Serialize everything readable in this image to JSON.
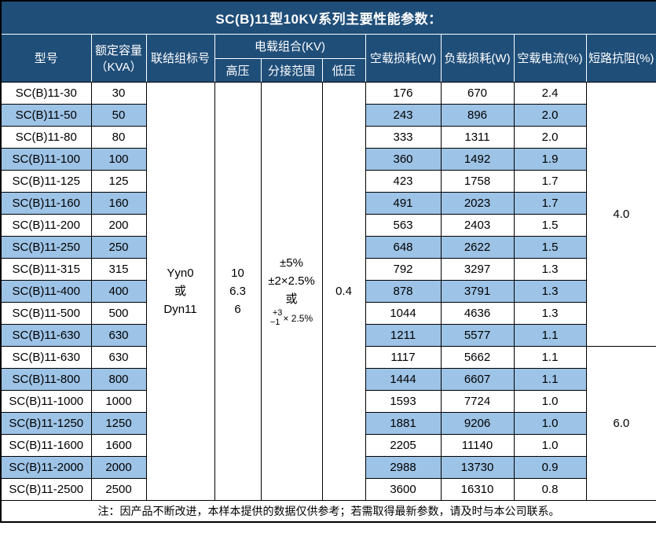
{
  "title": "SC(B)11型10KV系列主要性能参数：",
  "header": {
    "model": "型号",
    "capacity_line1": "额定容量",
    "capacity_line2": "（KVA）",
    "vector_group": "联结组标号",
    "voltage_combo": "电载组合(KV)",
    "hv": "高压",
    "tap_range": "分接范围",
    "lv": "低压",
    "no_load_loss": "空载损耗(W)",
    "load_loss": "负载损耗(W)",
    "no_load_current": "空载电流(%)",
    "short_circuit_impedance": "短路抗阻(%)"
  },
  "merged": {
    "vector_group_lines": [
      "Yyn0",
      "或",
      "Dyn11"
    ],
    "hv_lines": [
      "10",
      "6.3",
      "6"
    ],
    "tap_lines": [
      "±5%",
      "±2×2.5%",
      "或"
    ],
    "tap_stack_top": "+3",
    "tap_stack_bottom": "−1",
    "tap_stack_suffix": "× 2.5%",
    "lv": "0.4",
    "impedance_group1": "4.0",
    "impedance_group2": "6.0"
  },
  "rows": [
    {
      "model": "SC(B)11-30",
      "capacity": "30",
      "no_load_loss": "176",
      "load_loss": "670",
      "no_load_current": "2.4"
    },
    {
      "model": "SC(B)11-50",
      "capacity": "50",
      "no_load_loss": "243",
      "load_loss": "896",
      "no_load_current": "2.0"
    },
    {
      "model": "SC(B)11-80",
      "capacity": "80",
      "no_load_loss": "333",
      "load_loss": "1311",
      "no_load_current": "2.0"
    },
    {
      "model": "SC(B)11-100",
      "capacity": "100",
      "no_load_loss": "360",
      "load_loss": "1492",
      "no_load_current": "1.9"
    },
    {
      "model": "SC(B)11-125",
      "capacity": "125",
      "no_load_loss": "423",
      "load_loss": "1758",
      "no_load_current": "1.7"
    },
    {
      "model": "SC(B)11-160",
      "capacity": "160",
      "no_load_loss": "491",
      "load_loss": "2023",
      "no_load_current": "1.7"
    },
    {
      "model": "SC(B)11-200",
      "capacity": "200",
      "no_load_loss": "563",
      "load_loss": "2403",
      "no_load_current": "1.5"
    },
    {
      "model": "SC(B)11-250",
      "capacity": "250",
      "no_load_loss": "648",
      "load_loss": "2622",
      "no_load_current": "1.5"
    },
    {
      "model": "SC(B)11-315",
      "capacity": "315",
      "no_load_loss": "792",
      "load_loss": "3297",
      "no_load_current": "1.3"
    },
    {
      "model": "SC(B)11-400",
      "capacity": "400",
      "no_load_loss": "878",
      "load_loss": "3791",
      "no_load_current": "1.3"
    },
    {
      "model": "SC(B)11-500",
      "capacity": "500",
      "no_load_loss": "1044",
      "load_loss": "4636",
      "no_load_current": "1.3"
    },
    {
      "model": "SC(B)11-630",
      "capacity": "630",
      "no_load_loss": "1211",
      "load_loss": "5577",
      "no_load_current": "1.1"
    },
    {
      "model": "SC(B)11-630",
      "capacity": "630",
      "no_load_loss": "1117",
      "load_loss": "5662",
      "no_load_current": "1.1"
    },
    {
      "model": "SC(B)11-800",
      "capacity": "800",
      "no_load_loss": "1444",
      "load_loss": "6607",
      "no_load_current": "1.1"
    },
    {
      "model": "SC(B)11-1000",
      "capacity": "1000",
      "no_load_loss": "1593",
      "load_loss": "7724",
      "no_load_current": "1.0"
    },
    {
      "model": "SC(B)11-1250",
      "capacity": "1250",
      "no_load_loss": "1881",
      "load_loss": "9206",
      "no_load_current": "1.0"
    },
    {
      "model": "SC(B)11-1600",
      "capacity": "1600",
      "no_load_loss": "2205",
      "load_loss": "11140",
      "no_load_current": "1.0"
    },
    {
      "model": "SC(B)11-2000",
      "capacity": "2000",
      "no_load_loss": "2988",
      "load_loss": "13730",
      "no_load_current": "0.9"
    },
    {
      "model": "SC(B)11-2500",
      "capacity": "2500",
      "no_load_loss": "3600",
      "load_loss": "16310",
      "no_load_current": "0.8"
    }
  ],
  "group1_row_count": 12,
  "group2_row_count": 7,
  "footer_note": "注：因产品不断改进，本样本提供的数据仅供参考；若需取得最新参数，请及时与本公司联系。",
  "colors": {
    "header_bg": "#1F4E79",
    "header_text": "#FFFFFF",
    "header_grid": "#FFFFFF",
    "stripe_bg": "#9DC3E6",
    "border_color": "#000000",
    "data_text": "#000000"
  }
}
